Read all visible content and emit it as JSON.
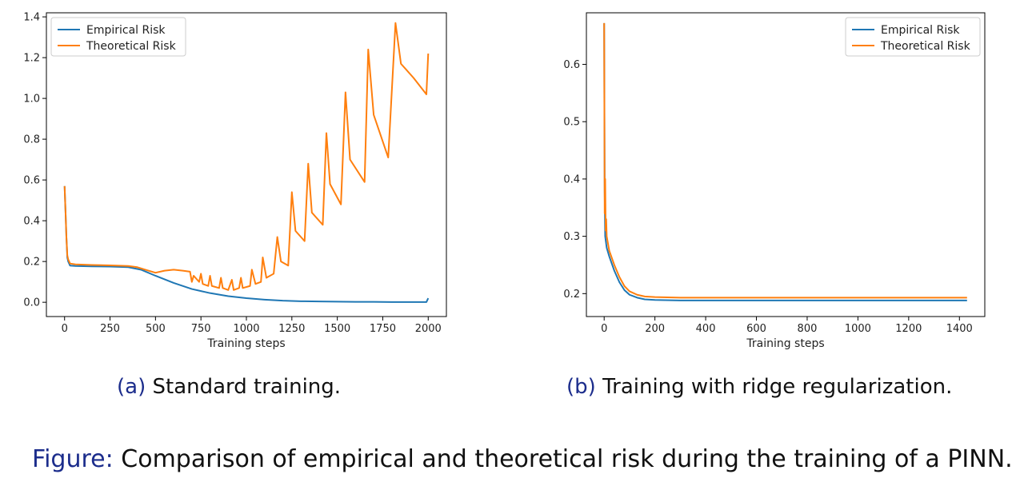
{
  "caption_a": {
    "tag": "(a)",
    "text": "Standard training."
  },
  "caption_b": {
    "tag": "(b)",
    "text": "Training with ridge regularization."
  },
  "figure_caption": {
    "tag": "Figure:",
    "text": "Comparison of empirical and theoretical risk during the training of a PINN."
  },
  "chart_data": [
    {
      "type": "line",
      "xlabel": "Training steps",
      "ylabel": "",
      "xlim": [
        -100,
        2100
      ],
      "ylim": [
        -0.07,
        1.42
      ],
      "xticks": [
        0,
        250,
        500,
        750,
        1000,
        1250,
        1500,
        1750,
        2000
      ],
      "yticks": [
        0.0,
        0.2,
        0.4,
        0.6,
        0.8,
        1.0,
        1.2,
        1.4
      ],
      "legend": {
        "position": "top-left"
      },
      "grid": false,
      "series": [
        {
          "name": "Empirical Risk",
          "color": "#1f77b4",
          "points": [
            [
              0,
              0.57
            ],
            [
              5,
              0.45
            ],
            [
              10,
              0.32
            ],
            [
              15,
              0.22
            ],
            [
              20,
              0.2
            ],
            [
              30,
              0.18
            ],
            [
              60,
              0.178
            ],
            [
              150,
              0.176
            ],
            [
              250,
              0.175
            ],
            [
              350,
              0.172
            ],
            [
              420,
              0.16
            ],
            [
              500,
              0.13
            ],
            [
              600,
              0.095
            ],
            [
              700,
              0.065
            ],
            [
              750,
              0.055
            ],
            [
              800,
              0.045
            ],
            [
              900,
              0.03
            ],
            [
              1000,
              0.02
            ],
            [
              1100,
              0.013
            ],
            [
              1200,
              0.008
            ],
            [
              1300,
              0.005
            ],
            [
              1400,
              0.004
            ],
            [
              1500,
              0.003
            ],
            [
              1600,
              0.002
            ],
            [
              1700,
              0.002
            ],
            [
              1800,
              0.001
            ],
            [
              1900,
              0.001
            ],
            [
              1990,
              0.001
            ],
            [
              2000,
              0.02
            ]
          ]
        },
        {
          "name": "Theoretical Risk",
          "color": "#ff7f0e",
          "points": [
            [
              0,
              0.57
            ],
            [
              5,
              0.45
            ],
            [
              10,
              0.32
            ],
            [
              15,
              0.23
            ],
            [
              20,
              0.21
            ],
            [
              30,
              0.19
            ],
            [
              60,
              0.186
            ],
            [
              150,
              0.183
            ],
            [
              250,
              0.181
            ],
            [
              350,
              0.178
            ],
            [
              400,
              0.172
            ],
            [
              450,
              0.158
            ],
            [
              500,
              0.145
            ],
            [
              550,
              0.155
            ],
            [
              600,
              0.16
            ],
            [
              650,
              0.155
            ],
            [
              690,
              0.15
            ],
            [
              700,
              0.1
            ],
            [
              710,
              0.13
            ],
            [
              740,
              0.1
            ],
            [
              750,
              0.14
            ],
            [
              760,
              0.09
            ],
            [
              790,
              0.08
            ],
            [
              800,
              0.13
            ],
            [
              810,
              0.08
            ],
            [
              850,
              0.07
            ],
            [
              860,
              0.12
            ],
            [
              870,
              0.07
            ],
            [
              900,
              0.06
            ],
            [
              920,
              0.11
            ],
            [
              930,
              0.06
            ],
            [
              960,
              0.07
            ],
            [
              970,
              0.12
            ],
            [
              980,
              0.07
            ],
            [
              1020,
              0.08
            ],
            [
              1030,
              0.16
            ],
            [
              1050,
              0.09
            ],
            [
              1080,
              0.1
            ],
            [
              1090,
              0.22
            ],
            [
              1110,
              0.12
            ],
            [
              1150,
              0.14
            ],
            [
              1170,
              0.32
            ],
            [
              1190,
              0.2
            ],
            [
              1230,
              0.18
            ],
            [
              1250,
              0.54
            ],
            [
              1270,
              0.35
            ],
            [
              1320,
              0.3
            ],
            [
              1340,
              0.68
            ],
            [
              1360,
              0.44
            ],
            [
              1420,
              0.38
            ],
            [
              1440,
              0.83
            ],
            [
              1460,
              0.58
            ],
            [
              1520,
              0.48
            ],
            [
              1545,
              1.03
            ],
            [
              1570,
              0.7
            ],
            [
              1650,
              0.59
            ],
            [
              1670,
              1.24
            ],
            [
              1700,
              0.92
            ],
            [
              1780,
              0.71
            ],
            [
              1820,
              1.37
            ],
            [
              1850,
              1.17
            ],
            [
              1920,
              1.1
            ],
            [
              1990,
              1.02
            ],
            [
              2000,
              1.22
            ]
          ]
        }
      ]
    },
    {
      "type": "line",
      "xlabel": "Training steps",
      "ylabel": "",
      "xlim": [
        -70,
        1500
      ],
      "ylim": [
        0.16,
        0.69
      ],
      "xticks": [
        0,
        200,
        400,
        600,
        800,
        1000,
        1200,
        1400
      ],
      "yticks": [
        0.2,
        0.3,
        0.4,
        0.5,
        0.6
      ],
      "legend": {
        "position": "top-right"
      },
      "grid": false,
      "series": [
        {
          "name": "Empirical Risk",
          "color": "#1f77b4",
          "points": [
            [
              0,
              0.672
            ],
            [
              2,
              0.38
            ],
            [
              4,
              0.3
            ],
            [
              10,
              0.28
            ],
            [
              20,
              0.265
            ],
            [
              40,
              0.24
            ],
            [
              60,
              0.22
            ],
            [
              80,
              0.206
            ],
            [
              100,
              0.198
            ],
            [
              130,
              0.193
            ],
            [
              160,
              0.19
            ],
            [
              200,
              0.189
            ],
            [
              300,
              0.188
            ],
            [
              400,
              0.188
            ],
            [
              600,
              0.188
            ],
            [
              800,
              0.188
            ],
            [
              1000,
              0.188
            ],
            [
              1200,
              0.188
            ],
            [
              1430,
              0.188
            ]
          ]
        },
        {
          "name": "Theoretical Risk",
          "color": "#ff7f0e",
          "points": [
            [
              0,
              0.672
            ],
            [
              2,
              0.34
            ],
            [
              4,
              0.4
            ],
            [
              6,
              0.31
            ],
            [
              8,
              0.33
            ],
            [
              10,
              0.3
            ],
            [
              20,
              0.275
            ],
            [
              40,
              0.25
            ],
            [
              60,
              0.229
            ],
            [
              80,
              0.213
            ],
            [
              100,
              0.204
            ],
            [
              130,
              0.198
            ],
            [
              160,
              0.195
            ],
            [
              200,
              0.194
            ],
            [
              300,
              0.193
            ],
            [
              400,
              0.193
            ],
            [
              600,
              0.193
            ],
            [
              800,
              0.193
            ],
            [
              1000,
              0.193
            ],
            [
              1200,
              0.193
            ],
            [
              1430,
              0.193
            ]
          ]
        }
      ]
    }
  ]
}
